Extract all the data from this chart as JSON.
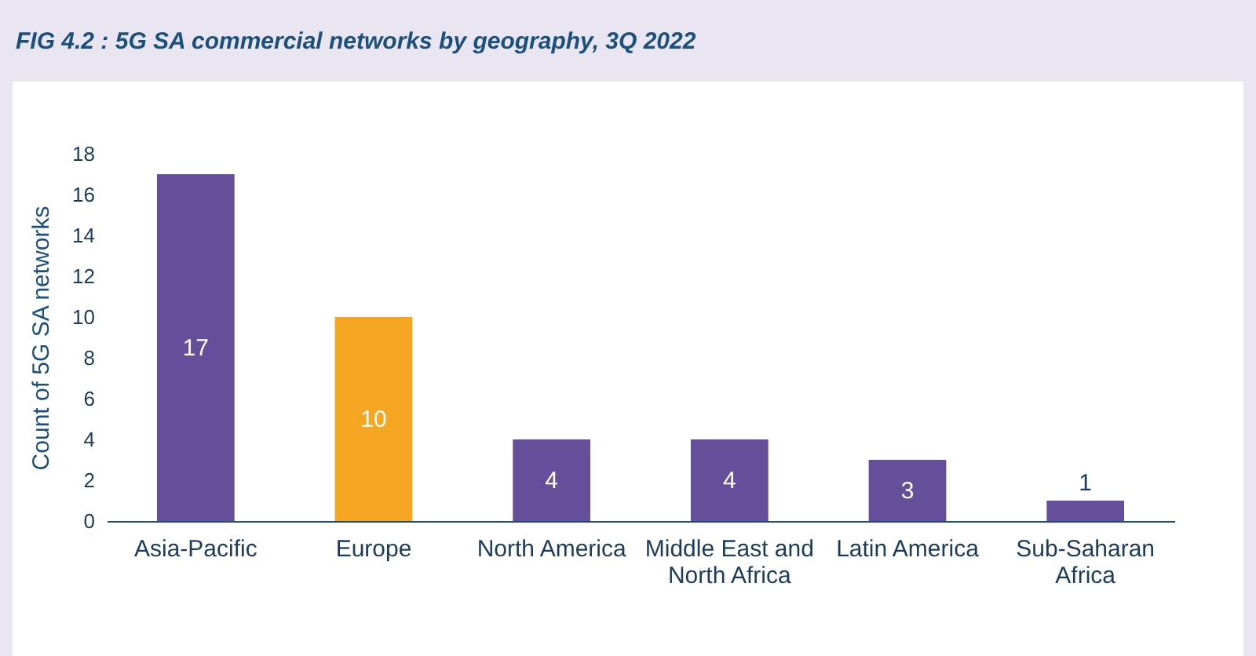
{
  "chart_data": {
    "type": "bar",
    "title": "FIG 4.2 : 5G SA commercial networks by geography, 3Q 2022",
    "ylabel": "Count of 5G SA networks",
    "categories": [
      "Asia-Pacific",
      "Europe",
      "North America",
      "Middle East and North Africa",
      "Latin America",
      "Sub-Saharan Africa"
    ],
    "values": [
      17,
      10,
      4,
      4,
      3,
      1
    ],
    "colors": [
      "#654f9b",
      "#f5a623",
      "#654f9b",
      "#654f9b",
      "#654f9b",
      "#654f9b"
    ],
    "ylim": [
      0,
      18
    ],
    "yticks": [
      0,
      2,
      4,
      6,
      8,
      10,
      12,
      14,
      16,
      18
    ],
    "grid": false,
    "data_labels": true
  }
}
